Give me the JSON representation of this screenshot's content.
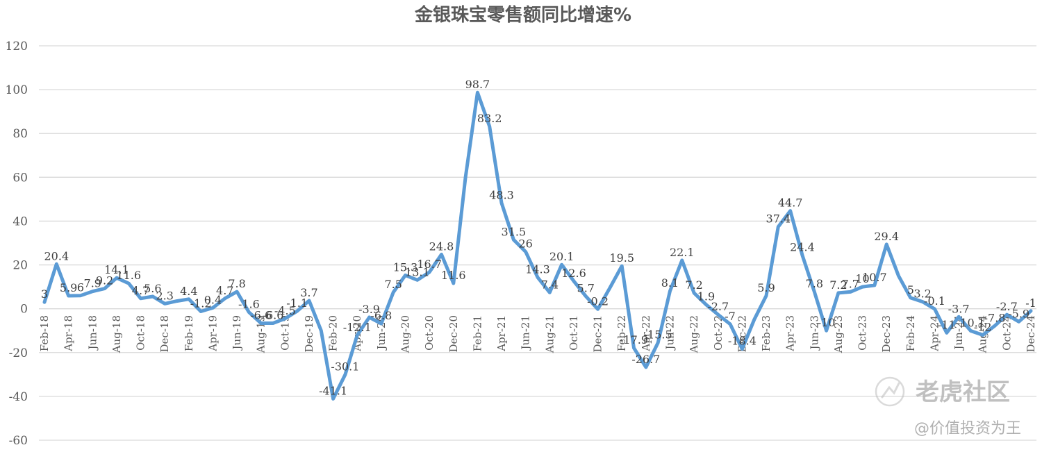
{
  "chart_data": {
    "type": "line",
    "title": "金银珠宝零售额同比增速%",
    "xlabel": "",
    "ylabel": "",
    "ylim": [
      -60,
      120
    ],
    "yticks": [
      120,
      100,
      80,
      60,
      40,
      20,
      0,
      -20,
      -40,
      -60
    ],
    "grid": true,
    "color": "#5b9bd5",
    "x": [
      "Feb-18",
      "Mar-18",
      "Apr-18",
      "May-18",
      "Jun-18",
      "Jul-18",
      "Aug-18",
      "Sep-18",
      "Oct-18",
      "Nov-18",
      "Dec-18",
      "Jan-19",
      "Feb-19",
      "Mar-19",
      "Apr-19",
      "May-19",
      "Jun-19",
      "Jul-19",
      "Aug-19",
      "Sep-19",
      "Oct-19",
      "Nov-19",
      "Dec-19",
      "Jan-20",
      "Feb-20",
      "Mar-20",
      "Apr-20",
      "May-20",
      "Jun-20",
      "Jul-20",
      "Aug-20",
      "Sep-20",
      "Oct-20",
      "Nov-20",
      "Dec-20",
      "Jan-21",
      "Feb-21",
      "Mar-21",
      "Apr-21",
      "May-21",
      "Jun-21",
      "Jul-21",
      "Aug-21",
      "Sep-21",
      "Oct-21",
      "Nov-21",
      "Dec-21",
      "Jan-22",
      "Feb-22",
      "Mar-22",
      "Apr-22",
      "May-22",
      "Jun-22",
      "Jul-22",
      "Aug-22",
      "Sep-22",
      "Oct-22",
      "Nov-22",
      "Dec-22",
      "Jan-23",
      "Feb-23",
      "Mar-23",
      "Apr-23",
      "May-23",
      "Jun-23",
      "Jul-23",
      "Aug-23",
      "Sep-23",
      "Oct-23",
      "Nov-23",
      "Dec-23",
      "Jan-24",
      "Feb-24",
      "Mar-24",
      "Apr-24",
      "May-24",
      "Jun-24",
      "Jul-24",
      "Aug-24",
      "Sep-24",
      "Oct-24",
      "Nov-24",
      "Dec-24"
    ],
    "x_tick_labels": [
      "Feb-18",
      "Apr-18",
      "Jun-18",
      "Aug-18",
      "Oct-18",
      "Dec-18",
      "Feb-19",
      "Apr-19",
      "Jun-19",
      "Aug-19",
      "Oct-19",
      "Dec-19",
      "Feb-20",
      "Apr-20",
      "Jun-20",
      "Aug-20",
      "Oct-20",
      "Dec-20",
      "Feb-21",
      "Apr-21",
      "Jun-21",
      "Aug-21",
      "Oct-21",
      "Dec-21",
      "Feb-22",
      "Apr-22",
      "Jun-22",
      "Aug-22",
      "Oct-22",
      "Dec-22",
      "Feb-23",
      "Apr-23",
      "Jun-23",
      "Aug-23",
      "Oct-23",
      "Dec-23",
      "Feb-24",
      "Apr-24",
      "Jun-24",
      "Aug-24",
      "Oct-24",
      "Dec-24"
    ],
    "values": [
      3,
      20.4,
      5.9,
      6,
      7.9,
      9.2,
      14.1,
      11.6,
      4.7,
      5.6,
      2.3,
      3.5,
      4.4,
      -1.2,
      0.4,
      4.7,
      7.8,
      -1.6,
      -6.6,
      -6.6,
      -4.5,
      -1.1,
      3.7,
      -10,
      -41.1,
      -30.1,
      -12.1,
      -3.9,
      -6.8,
      7.5,
      15.3,
      13.1,
      16.7,
      24.8,
      11.6,
      60,
      98.7,
      83.2,
      48.3,
      31.5,
      26,
      14.3,
      7.4,
      20.1,
      12.6,
      5.7,
      -0.2,
      9.5,
      19.5,
      -17.9,
      -26.7,
      -15.5,
      8.1,
      22.1,
      7.2,
      1.9,
      -2.7,
      -7,
      -18.4,
      -5,
      5.9,
      37.4,
      44.7,
      24.4,
      7.8,
      -10,
      7.2,
      7.7,
      10,
      10.7,
      29.4,
      15,
      5,
      3.2,
      -0.1,
      -11,
      -3.7,
      -10.1,
      -12,
      -7.8,
      -2.7,
      -5.9,
      -1
    ],
    "data_labels": [
      "3",
      "20.4",
      "5.9",
      "6",
      "7.9",
      "9.2",
      "14.1",
      "11.6",
      "4.7",
      "5.6",
      "2.3",
      "",
      "4.4",
      "-1.2",
      "0.4",
      "4.7",
      "7.8",
      "-1.6",
      "-6.6",
      "-6.6",
      "-4.5",
      "-1.1",
      "3.7",
      "",
      "-41.1",
      "-30.1",
      "-12.1",
      "-3.9",
      "-6.8",
      "7.5",
      "15.3",
      "13.1",
      "16.7",
      "24.8",
      "11.6",
      "",
      "98.7",
      "83.2",
      "48.3",
      "31.5",
      "26",
      "14.3",
      "7.4",
      "20.1",
      "12.6",
      "5.7",
      "-0.2",
      "",
      "19.5",
      "-17.9",
      "-26.7",
      "-15.5",
      "8.1",
      "22.1",
      "7.2",
      "1.9",
      "-2.7",
      "-7",
      "-18.4",
      "",
      "5.9",
      "37.4",
      "44.7",
      "24.4",
      "7.8",
      "-10",
      "7.2",
      "7.7",
      "10",
      "10.7",
      "29.4",
      "",
      "5",
      "3.2",
      "-0.1",
      "-11",
      "-3.7",
      "-10.1",
      "-12",
      "-7.8",
      "-2.7",
      "-5.9",
      "-1"
    ]
  },
  "watermark": {
    "brand": "老虎社区",
    "author": "@价值投资为王"
  }
}
